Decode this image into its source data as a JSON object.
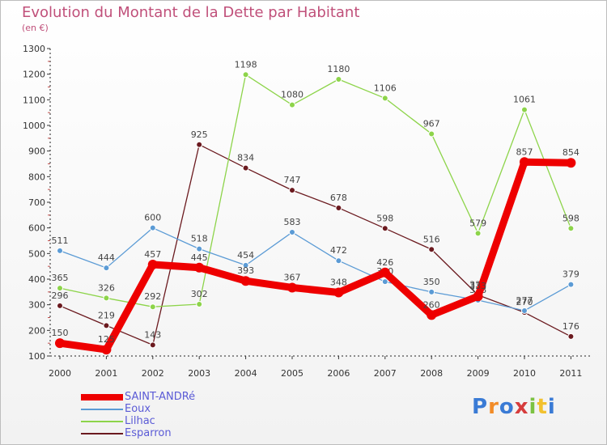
{
  "header": {
    "title": "Evolution du Montant de la Dette par Habitant",
    "subtitle": "(en €)"
  },
  "logo": {
    "text": "Proxiti"
  },
  "chart_data": {
    "type": "line",
    "title": "Evolution du Montant de la Dette par Habitant",
    "ylabel": "(en €)",
    "xlabel": "",
    "ylim": [
      100,
      1300
    ],
    "y_ticks": [
      100,
      200,
      300,
      400,
      500,
      600,
      700,
      800,
      900,
      1000,
      1100,
      1200,
      1300
    ],
    "categories": [
      "2000",
      "2001",
      "2002",
      "2003",
      "2004",
      "2005",
      "2006",
      "2007",
      "2008",
      "2009",
      "2010",
      "2011"
    ],
    "grid": false,
    "legend_position": "bottom-left",
    "series": [
      {
        "name": "Esparron",
        "color": "#6b1a1f",
        "values": [
          296,
          219,
          143,
          925,
          834,
          747,
          678,
          598,
          516,
          338,
          270,
          176
        ]
      },
      {
        "name": "Lilhac",
        "color": "#8dd44a",
        "values": [
          365,
          326,
          292,
          302,
          1198,
          1080,
          1180,
          1106,
          967,
          579,
          1061,
          598
        ]
      },
      {
        "name": "Eoux",
        "color": "#5b9bd5",
        "values": [
          511,
          444,
          600,
          518,
          454,
          583,
          472,
          390,
          350,
          318,
          277,
          379
        ]
      },
      {
        "name": "SAINT-ANDRé",
        "color": "#ee0000",
        "values": [
          150,
          125,
          457,
          445,
          393,
          367,
          348,
          426,
          260,
          333,
          857,
          854
        ]
      }
    ],
    "legend_order": [
      "SAINT-ANDRé",
      "Eoux",
      "Lilhac",
      "Esparron"
    ]
  }
}
